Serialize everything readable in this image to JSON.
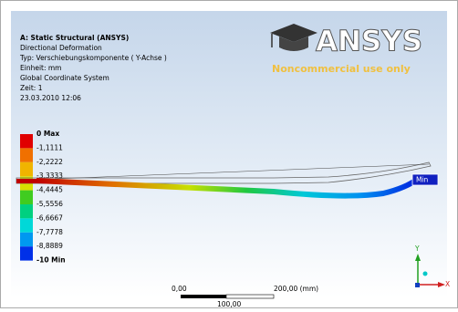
{
  "header": {
    "title": "A: Static Structural (ANSYS)",
    "lines": [
      "Directional Deformation",
      "Typ: Verschiebungskomponente ( Y-Achse )",
      "Einheit: mm",
      "Global Coordinate System",
      "Zeit: 1",
      "23.03.2010 12:06"
    ]
  },
  "logo": {
    "brand": "ANSYS",
    "notice": "Noncommercial use only"
  },
  "legend": {
    "labels": [
      "0 Max",
      "-1,1111",
      "-2,2222",
      "-3,3333",
      "-4,4445",
      "-5,5556",
      "-6,6667",
      "-7,7778",
      "-8,8889",
      "-10 Min"
    ],
    "colors": [
      "#e00000",
      "#f07000",
      "#f0b400",
      "#d8e000",
      "#40cc20",
      "#00d080",
      "#00d8d8",
      "#0098f0",
      "#0030e8"
    ]
  },
  "probe": {
    "label": "Min"
  },
  "scale": {
    "start": "0,00",
    "end": "200,00 (mm)",
    "mid": "100,00"
  },
  "triad": {
    "y": "Y",
    "x": "X"
  }
}
